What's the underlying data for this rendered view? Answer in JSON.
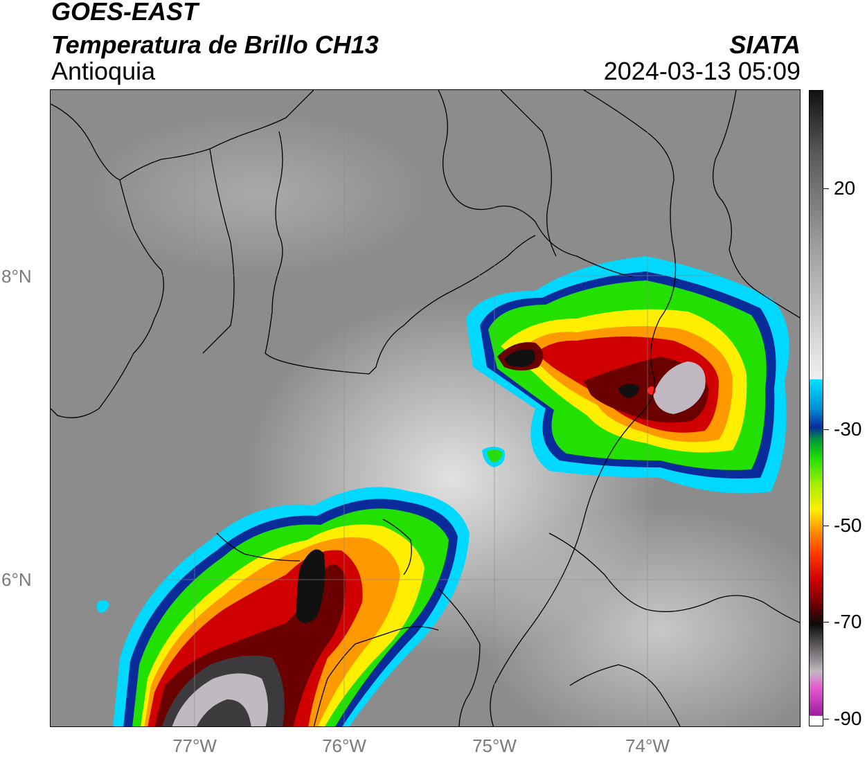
{
  "header": {
    "satellite": "GOES-EAST",
    "product": "Temperatura de Brillo CH13",
    "region": "Antioquia",
    "organization": "SIATA",
    "timestamp": "2024-03-13 05:09"
  },
  "map": {
    "lat_labels": [
      "8°N",
      "6°N"
    ],
    "lon_labels": [
      "77°W",
      "76°W",
      "75°W",
      "74°W"
    ],
    "lon_range": [
      -77.95,
      -73.05
    ],
    "lat_range": [
      4.9,
      9.1
    ],
    "grid": true
  },
  "colorbar": {
    "ticks": [
      "20",
      "-30",
      "-50",
      "-70",
      "-90"
    ],
    "units": "",
    "range": [
      -90,
      40
    ],
    "colors": [
      "#ffffff",
      "#9d1c9e",
      "#e65ad1",
      "#c0b9c1",
      "#3d3a3d",
      "#0b0b0b",
      "#6a0000",
      "#d10000",
      "#ff3800",
      "#ff9900",
      "#ffee00",
      "#a6ee00",
      "#22e000",
      "#009a3a",
      "#0a2c9a",
      "#0090d8",
      "#00e0ff",
      "#f0f0f0",
      "#808080",
      "#111111"
    ]
  }
}
